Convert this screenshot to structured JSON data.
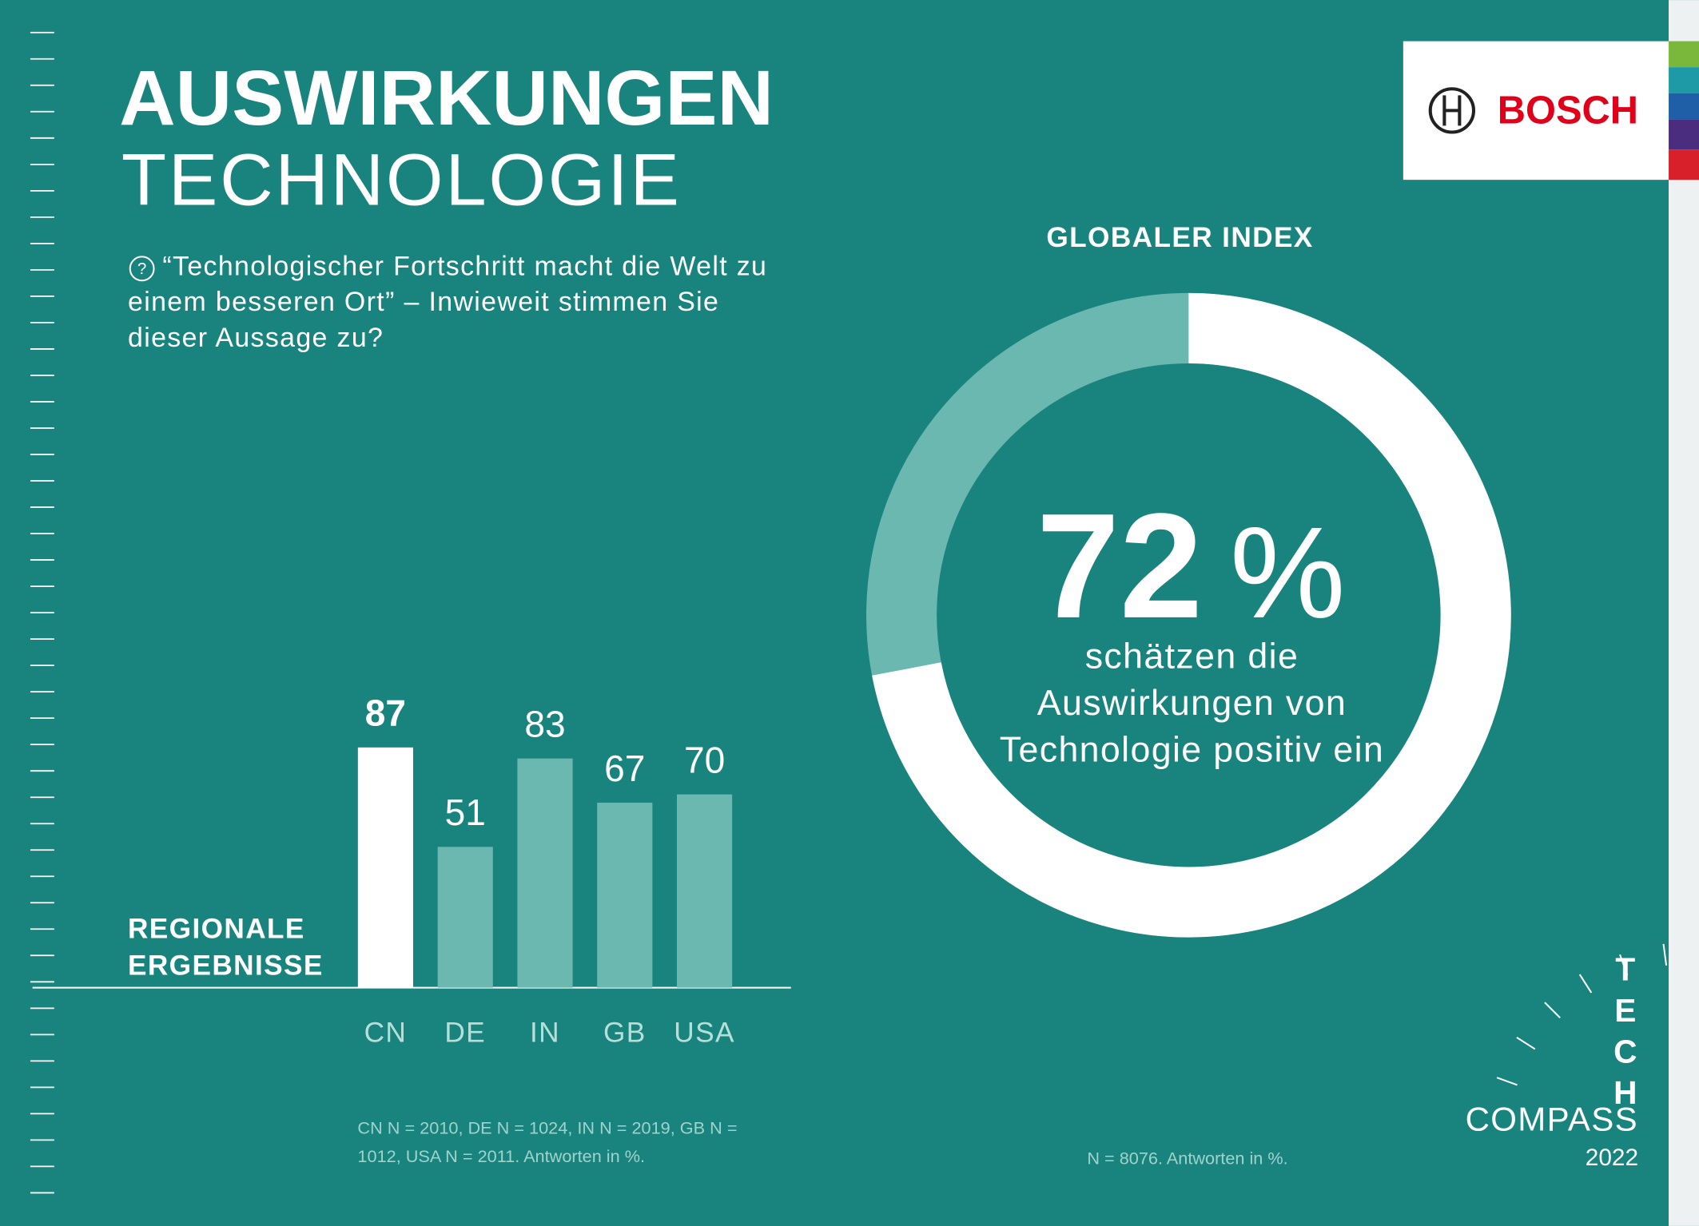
{
  "header": {
    "title": "AUSWIRKUNGEN",
    "subtitle": "TECHNOLOGIE",
    "question_mark": "?",
    "question": "“Technologischer Fortschritt macht die Welt zu einem besseren Ort” – Inwieweit stimmen Sie dieser Aussage zu?"
  },
  "logo": {
    "brand": "BOSCH"
  },
  "badge": {
    "word": "TECH",
    "name": "COMPASS",
    "year": "2022"
  },
  "chart_data": [
    {
      "type": "bar",
      "title": "REGIONALE ERGEBNISSE",
      "categories": [
        "CN",
        "DE",
        "IN",
        "GB",
        "USA"
      ],
      "values": [
        87,
        51,
        83,
        67,
        70
      ],
      "colors": [
        "#ffffff",
        "#6bb8b1",
        "#6bb8b1",
        "#6bb8b1",
        "#6bb8b1"
      ],
      "note": "CN N = 2010, DE N = 1024, IN N = 2019, GB N = 1012, USA N = 2011. Antworten in %."
    },
    {
      "type": "pie",
      "title": "GLOBALER INDEX",
      "values": [
        72
      ],
      "value_unit": "%",
      "color": "#ffffff",
      "track_color": "#6bb8b1",
      "caption": "schätzen die Auswirkungen von Technologie positiv ein",
      "note": "N = 8076. Antworten in %."
    }
  ]
}
